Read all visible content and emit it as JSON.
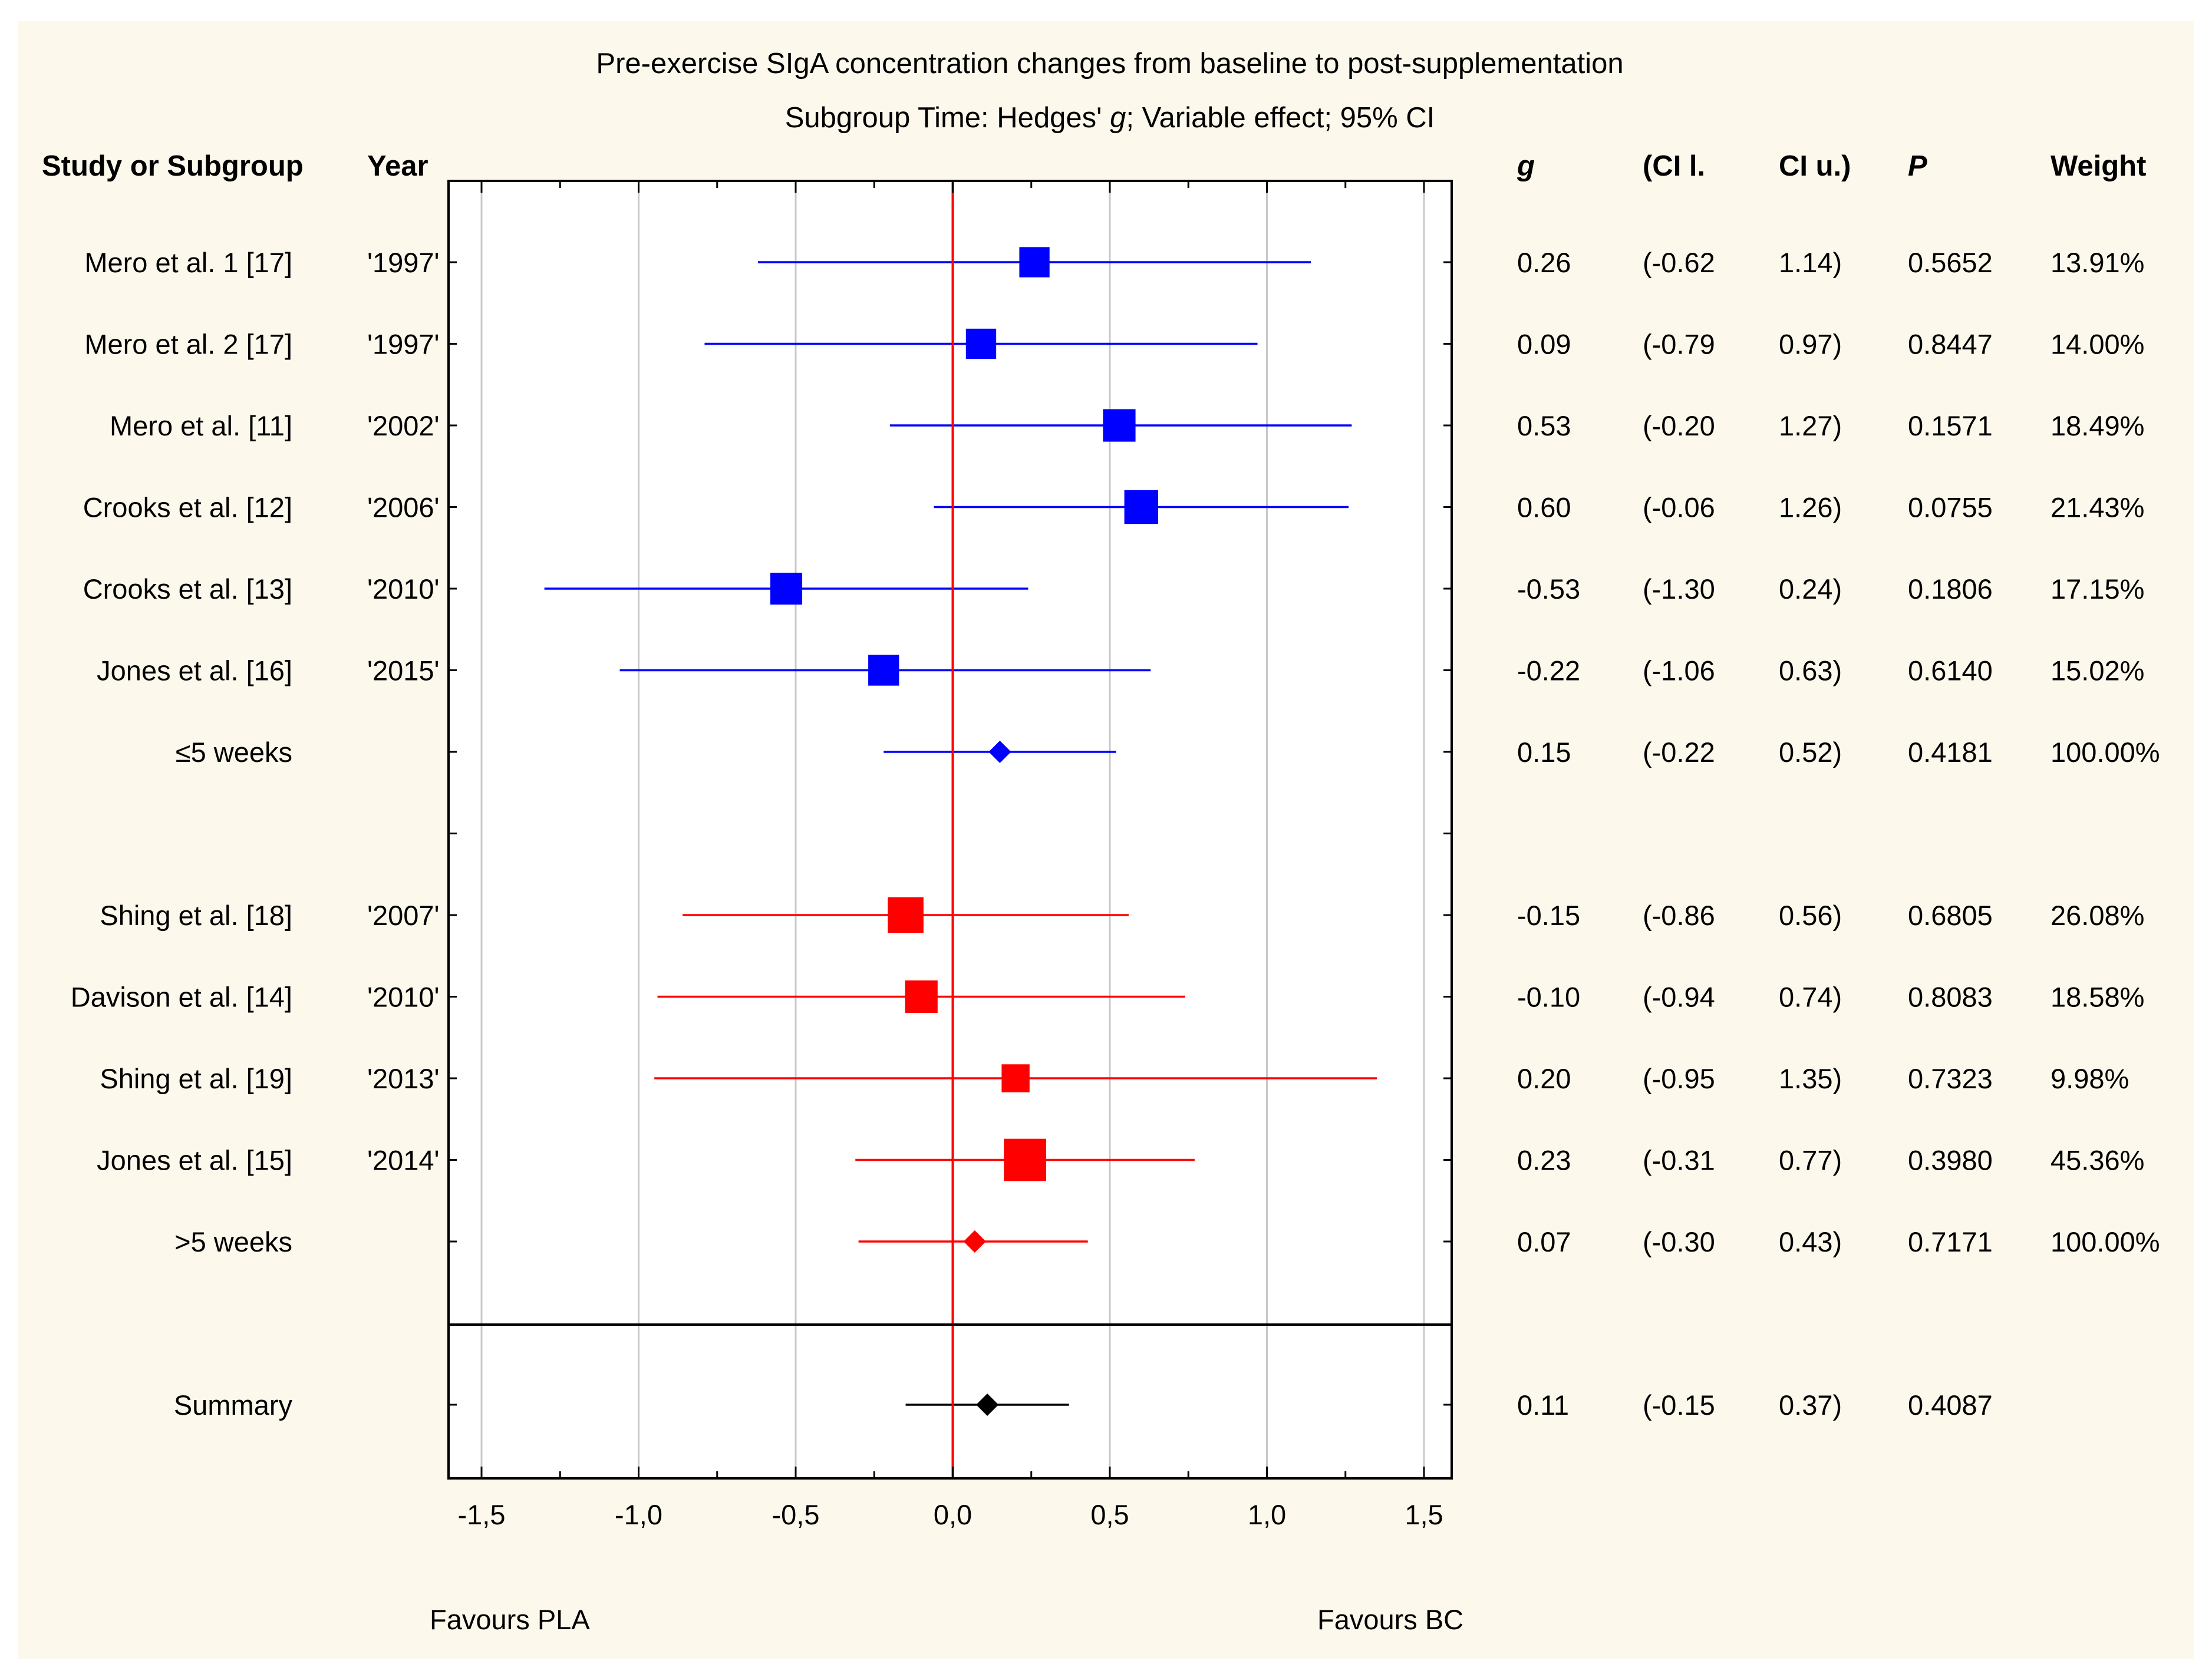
{
  "chart_data": {
    "type": "forest",
    "title": "Pre-exercise SIgA concentration changes from baseline to post-supplementation",
    "subtitle": {
      "pre": "Subgroup Time: Hedges' ",
      "italic": "g",
      "post": "; Variable effect; 95% CI"
    },
    "headers": {
      "study": "Study or Subgroup",
      "year": "Year",
      "g": "g",
      "ci_l": "(CI l.",
      "ci_u": "CI u.)",
      "p": "P",
      "weight": "Weight"
    },
    "xlim": [
      -1.5,
      1.5
    ],
    "xticks": [
      -1.5,
      -1.0,
      -0.5,
      0.0,
      0.5,
      1.0,
      1.5
    ],
    "xtick_labels": [
      "-1,5",
      "-1,0",
      "-0,5",
      "0,0",
      "0,5",
      "1,0",
      "1,5"
    ],
    "favours_left": "Favours PLA",
    "favours_right": "Favours BC",
    "colors": {
      "group1": "#0000ff",
      "group2": "#ff0000",
      "summary": "#000000",
      "zero_line": "#ff0000",
      "grid": "#c8c8c8"
    },
    "rows": [
      {
        "label": "Mero et al. 1 [17]",
        "year": "'1997'",
        "g": 0.26,
        "ci_l": -0.62,
        "ci_u": 1.14,
        "g_txt": "0.26",
        "l_txt": "(-0.62",
        "u_txt": "1.14)",
        "p_txt": "0.5652",
        "w_txt": "13.91%",
        "weight": 13.91,
        "kind": "study",
        "group": 1
      },
      {
        "label": "Mero et al. 2 [17]",
        "year": "'1997'",
        "g": 0.09,
        "ci_l": -0.79,
        "ci_u": 0.97,
        "g_txt": "0.09",
        "l_txt": "(-0.79",
        "u_txt": "0.97)",
        "p_txt": "0.8447",
        "w_txt": "14.00%",
        "weight": 14.0,
        "kind": "study",
        "group": 1
      },
      {
        "label": "Mero et al. [11]",
        "year": "'2002'",
        "g": 0.53,
        "ci_l": -0.2,
        "ci_u": 1.27,
        "g_txt": "0.53",
        "l_txt": "(-0.20",
        "u_txt": "1.27)",
        "p_txt": "0.1571",
        "w_txt": "18.49%",
        "weight": 18.49,
        "kind": "study",
        "group": 1
      },
      {
        "label": "Crooks et al. [12]",
        "year": "'2006'",
        "g": 0.6,
        "ci_l": -0.06,
        "ci_u": 1.26,
        "g_txt": "0.60",
        "l_txt": "(-0.06",
        "u_txt": "1.26)",
        "p_txt": "0.0755",
        "w_txt": "21.43%",
        "weight": 21.43,
        "kind": "study",
        "group": 1
      },
      {
        "label": "Crooks et al. [13]",
        "year": "'2010'",
        "g": -0.53,
        "ci_l": -1.3,
        "ci_u": 0.24,
        "g_txt": "-0.53",
        "l_txt": "(-1.30",
        "u_txt": "0.24)",
        "p_txt": "0.1806",
        "w_txt": "17.15%",
        "weight": 17.15,
        "kind": "study",
        "group": 1
      },
      {
        "label": "Jones et al. [16]",
        "year": "'2015'",
        "g": -0.22,
        "ci_l": -1.06,
        "ci_u": 0.63,
        "g_txt": "-0.22",
        "l_txt": "(-1.06",
        "u_txt": "0.63)",
        "p_txt": "0.6140",
        "w_txt": "15.02%",
        "weight": 15.02,
        "kind": "study",
        "group": 1
      },
      {
        "label": "≤5 weeks",
        "year": "",
        "g": 0.15,
        "ci_l": -0.22,
        "ci_u": 0.52,
        "g_txt": "0.15",
        "l_txt": "(-0.22",
        "u_txt": "0.52)",
        "p_txt": "0.4181",
        "w_txt": "100.00%",
        "weight": 100,
        "kind": "subtotal",
        "group": 1
      },
      {
        "label": "",
        "year": "",
        "kind": "spacer"
      },
      {
        "label": "Shing et al. [18]",
        "year": "'2007'",
        "g": -0.15,
        "ci_l": -0.86,
        "ci_u": 0.56,
        "g_txt": "-0.15",
        "l_txt": "(-0.86",
        "u_txt": "0.56)",
        "p_txt": "0.6805",
        "w_txt": "26.08%",
        "weight": 26.08,
        "kind": "study",
        "group": 2
      },
      {
        "label": "Davison et al. [14]",
        "year": "'2010'",
        "g": -0.1,
        "ci_l": -0.94,
        "ci_u": 0.74,
        "g_txt": "-0.10",
        "l_txt": "(-0.94",
        "u_txt": "0.74)",
        "p_txt": "0.8083",
        "w_txt": "18.58%",
        "weight": 18.58,
        "kind": "study",
        "group": 2
      },
      {
        "label": "Shing et al. [19]",
        "year": "'2013'",
        "g": 0.2,
        "ci_l": -0.95,
        "ci_u": 1.35,
        "g_txt": "0.20",
        "l_txt": "(-0.95",
        "u_txt": "1.35)",
        "p_txt": "0.7323",
        "w_txt": "9.98%",
        "weight": 9.98,
        "kind": "study",
        "group": 2
      },
      {
        "label": "Jones et al. [15]",
        "year": "'2014'",
        "g": 0.23,
        "ci_l": -0.31,
        "ci_u": 0.77,
        "g_txt": "0.23",
        "l_txt": "(-0.31",
        "u_txt": "0.77)",
        "p_txt": "0.3980",
        "w_txt": "45.36%",
        "weight": 45.36,
        "kind": "study",
        "group": 2
      },
      {
        "label": ">5 weeks",
        "year": "",
        "g": 0.07,
        "ci_l": -0.3,
        "ci_u": 0.43,
        "g_txt": "0.07",
        "l_txt": "(-0.30",
        "u_txt": "0.43)",
        "p_txt": "0.7171",
        "w_txt": "100.00%",
        "weight": 100,
        "kind": "subtotal",
        "group": 2
      },
      {
        "label": "",
        "year": "",
        "kind": "divider"
      },
      {
        "label": "Summary",
        "year": "",
        "g": 0.11,
        "ci_l": -0.15,
        "ci_u": 0.37,
        "g_txt": "0.11",
        "l_txt": "(-0.15",
        "u_txt": "0.37)",
        "p_txt": "0.4087",
        "w_txt": "",
        "weight": 0,
        "kind": "summary",
        "group": 0
      }
    ]
  }
}
